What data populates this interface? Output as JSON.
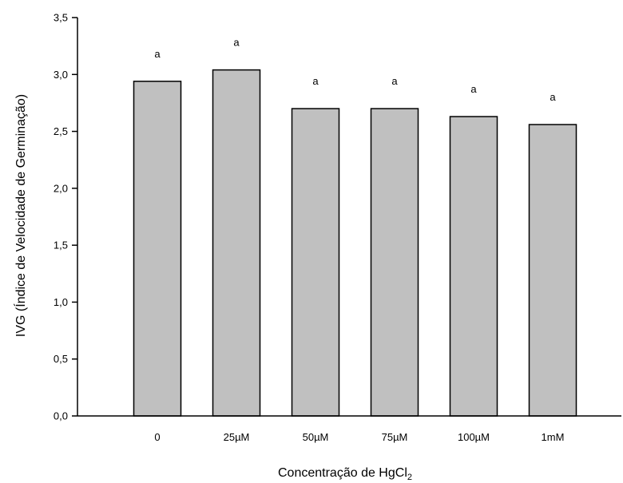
{
  "chart_data": {
    "type": "bar",
    "xlabel": "Concentração de HgCl",
    "xlabel_subscript": "2",
    "ylabel": "IVG (Índice de Velocidade de Germinação)",
    "categories": [
      "0",
      "25µM",
      "50µM",
      "75µM",
      "100µM",
      "1mM"
    ],
    "values": [
      2.94,
      3.04,
      2.7,
      2.7,
      2.63,
      2.56
    ],
    "significance_labels": [
      "a",
      "a",
      "a",
      "a",
      "a",
      "a"
    ],
    "ylim": [
      0,
      3.5
    ],
    "yticks": [
      0,
      0.5,
      1.0,
      1.5,
      2.0,
      2.5,
      3.0,
      3.5
    ],
    "ytick_labels": [
      "0,0",
      "0,5",
      "1,0",
      "1,5",
      "2,0",
      "2,5",
      "3,0",
      "3,5"
    ],
    "grid": false,
    "colors": {
      "bar_fill": "#c0c0c0",
      "bar_stroke": "#000000",
      "axis": "#000000"
    }
  }
}
